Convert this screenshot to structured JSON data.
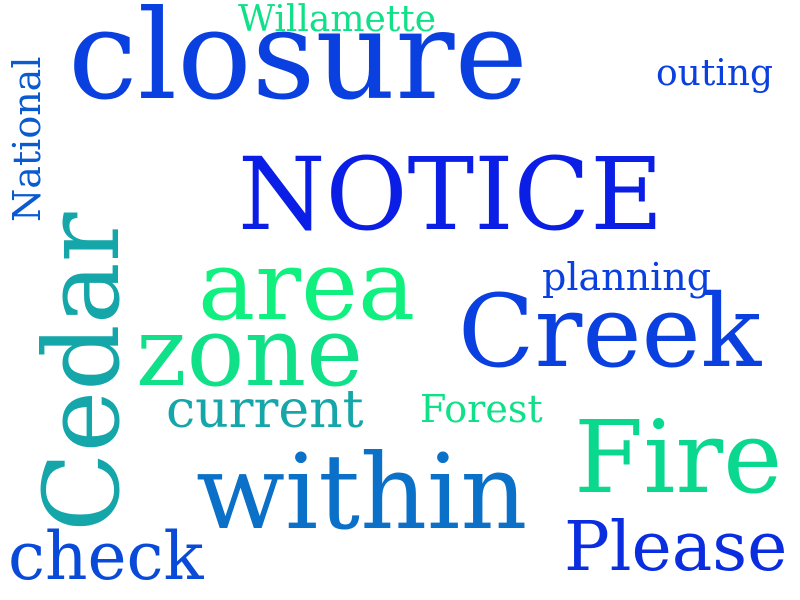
{
  "words": {
    "closure": {
      "text": "closure",
      "color": "#0a3fe0"
    },
    "notice": {
      "text": "NOTICE",
      "color": "#0a1ee6"
    },
    "creek": {
      "text": "Creek",
      "color": "#0a3fe0"
    },
    "cedar": {
      "text": "Cedar",
      "color": "#14a6a8"
    },
    "within": {
      "text": "within",
      "color": "#0a70c8"
    },
    "fire": {
      "text": "Fire",
      "color": "#0ad88e"
    },
    "area": {
      "text": "area",
      "color": "#10f07e"
    },
    "zone": {
      "text": "zone",
      "color": "#10e088"
    },
    "please": {
      "text": "Please",
      "color": "#0a2de0"
    },
    "check": {
      "text": "check",
      "color": "#0a4ad8"
    },
    "current": {
      "text": "current",
      "color": "#14a6a8"
    },
    "forest": {
      "text": "Forest",
      "color": "#10e088"
    },
    "planning": {
      "text": "planning",
      "color": "#0a3fe0"
    },
    "outing": {
      "text": "outing",
      "color": "#0a3fe0"
    },
    "willamette": {
      "text": "Willamette",
      "color": "#10e088"
    },
    "national": {
      "text": "National",
      "color": "#0a5ad0"
    }
  }
}
